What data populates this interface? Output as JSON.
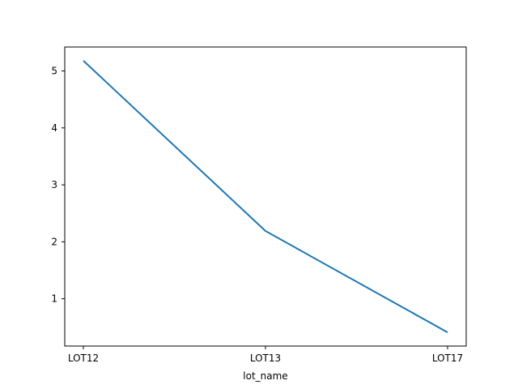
{
  "chart_data": {
    "type": "line",
    "title": "",
    "xlabel": "lot_name",
    "ylabel": "",
    "categories": [
      "LOT12",
      "LOT13",
      "LOT17"
    ],
    "series": [
      {
        "values": [
          5.18,
          2.19,
          0.41
        ],
        "color": "#1f77b4"
      }
    ],
    "yticks": [
      1,
      2,
      3,
      4,
      5
    ],
    "ytick_labels": [
      "1",
      "2",
      "3",
      "4",
      "5"
    ],
    "ylim": [
      0.17,
      5.42
    ],
    "grid": false,
    "legend": "none"
  }
}
